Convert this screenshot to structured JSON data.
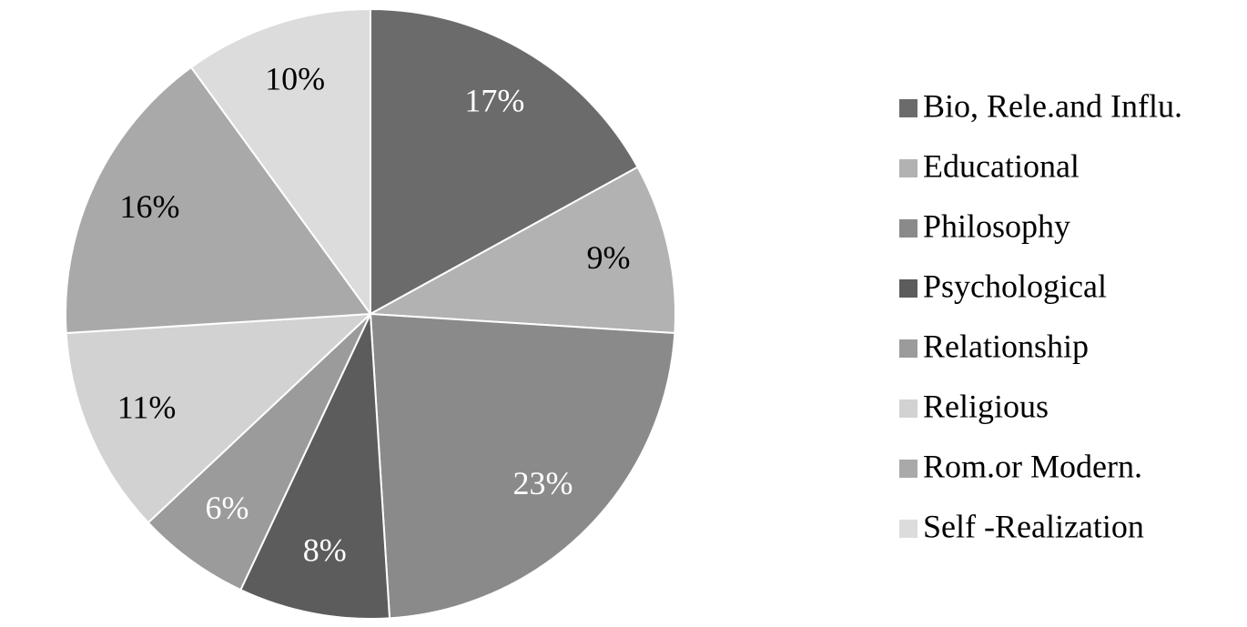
{
  "chart_data": {
    "type": "pie",
    "categories": [
      "Bio, Rele.and Influ.",
      "Educational",
      "Philosophy",
      "Psychological",
      "Relationship",
      "Religious",
      "Rom.or Modern.",
      "Self -Realization"
    ],
    "values": [
      17,
      9,
      23,
      8,
      6,
      11,
      16,
      10
    ],
    "value_labels": [
      "17%",
      "9%",
      "23%",
      "8%",
      "6%",
      "11%",
      "16%",
      "10%"
    ],
    "colors": [
      "#6b6b6b",
      "#b2b2b2",
      "#8a8a8a",
      "#5c5c5c",
      "#9b9b9b",
      "#d2d2d2",
      "#a9a9a9",
      "#dcdcdc"
    ],
    "legend": "right"
  }
}
